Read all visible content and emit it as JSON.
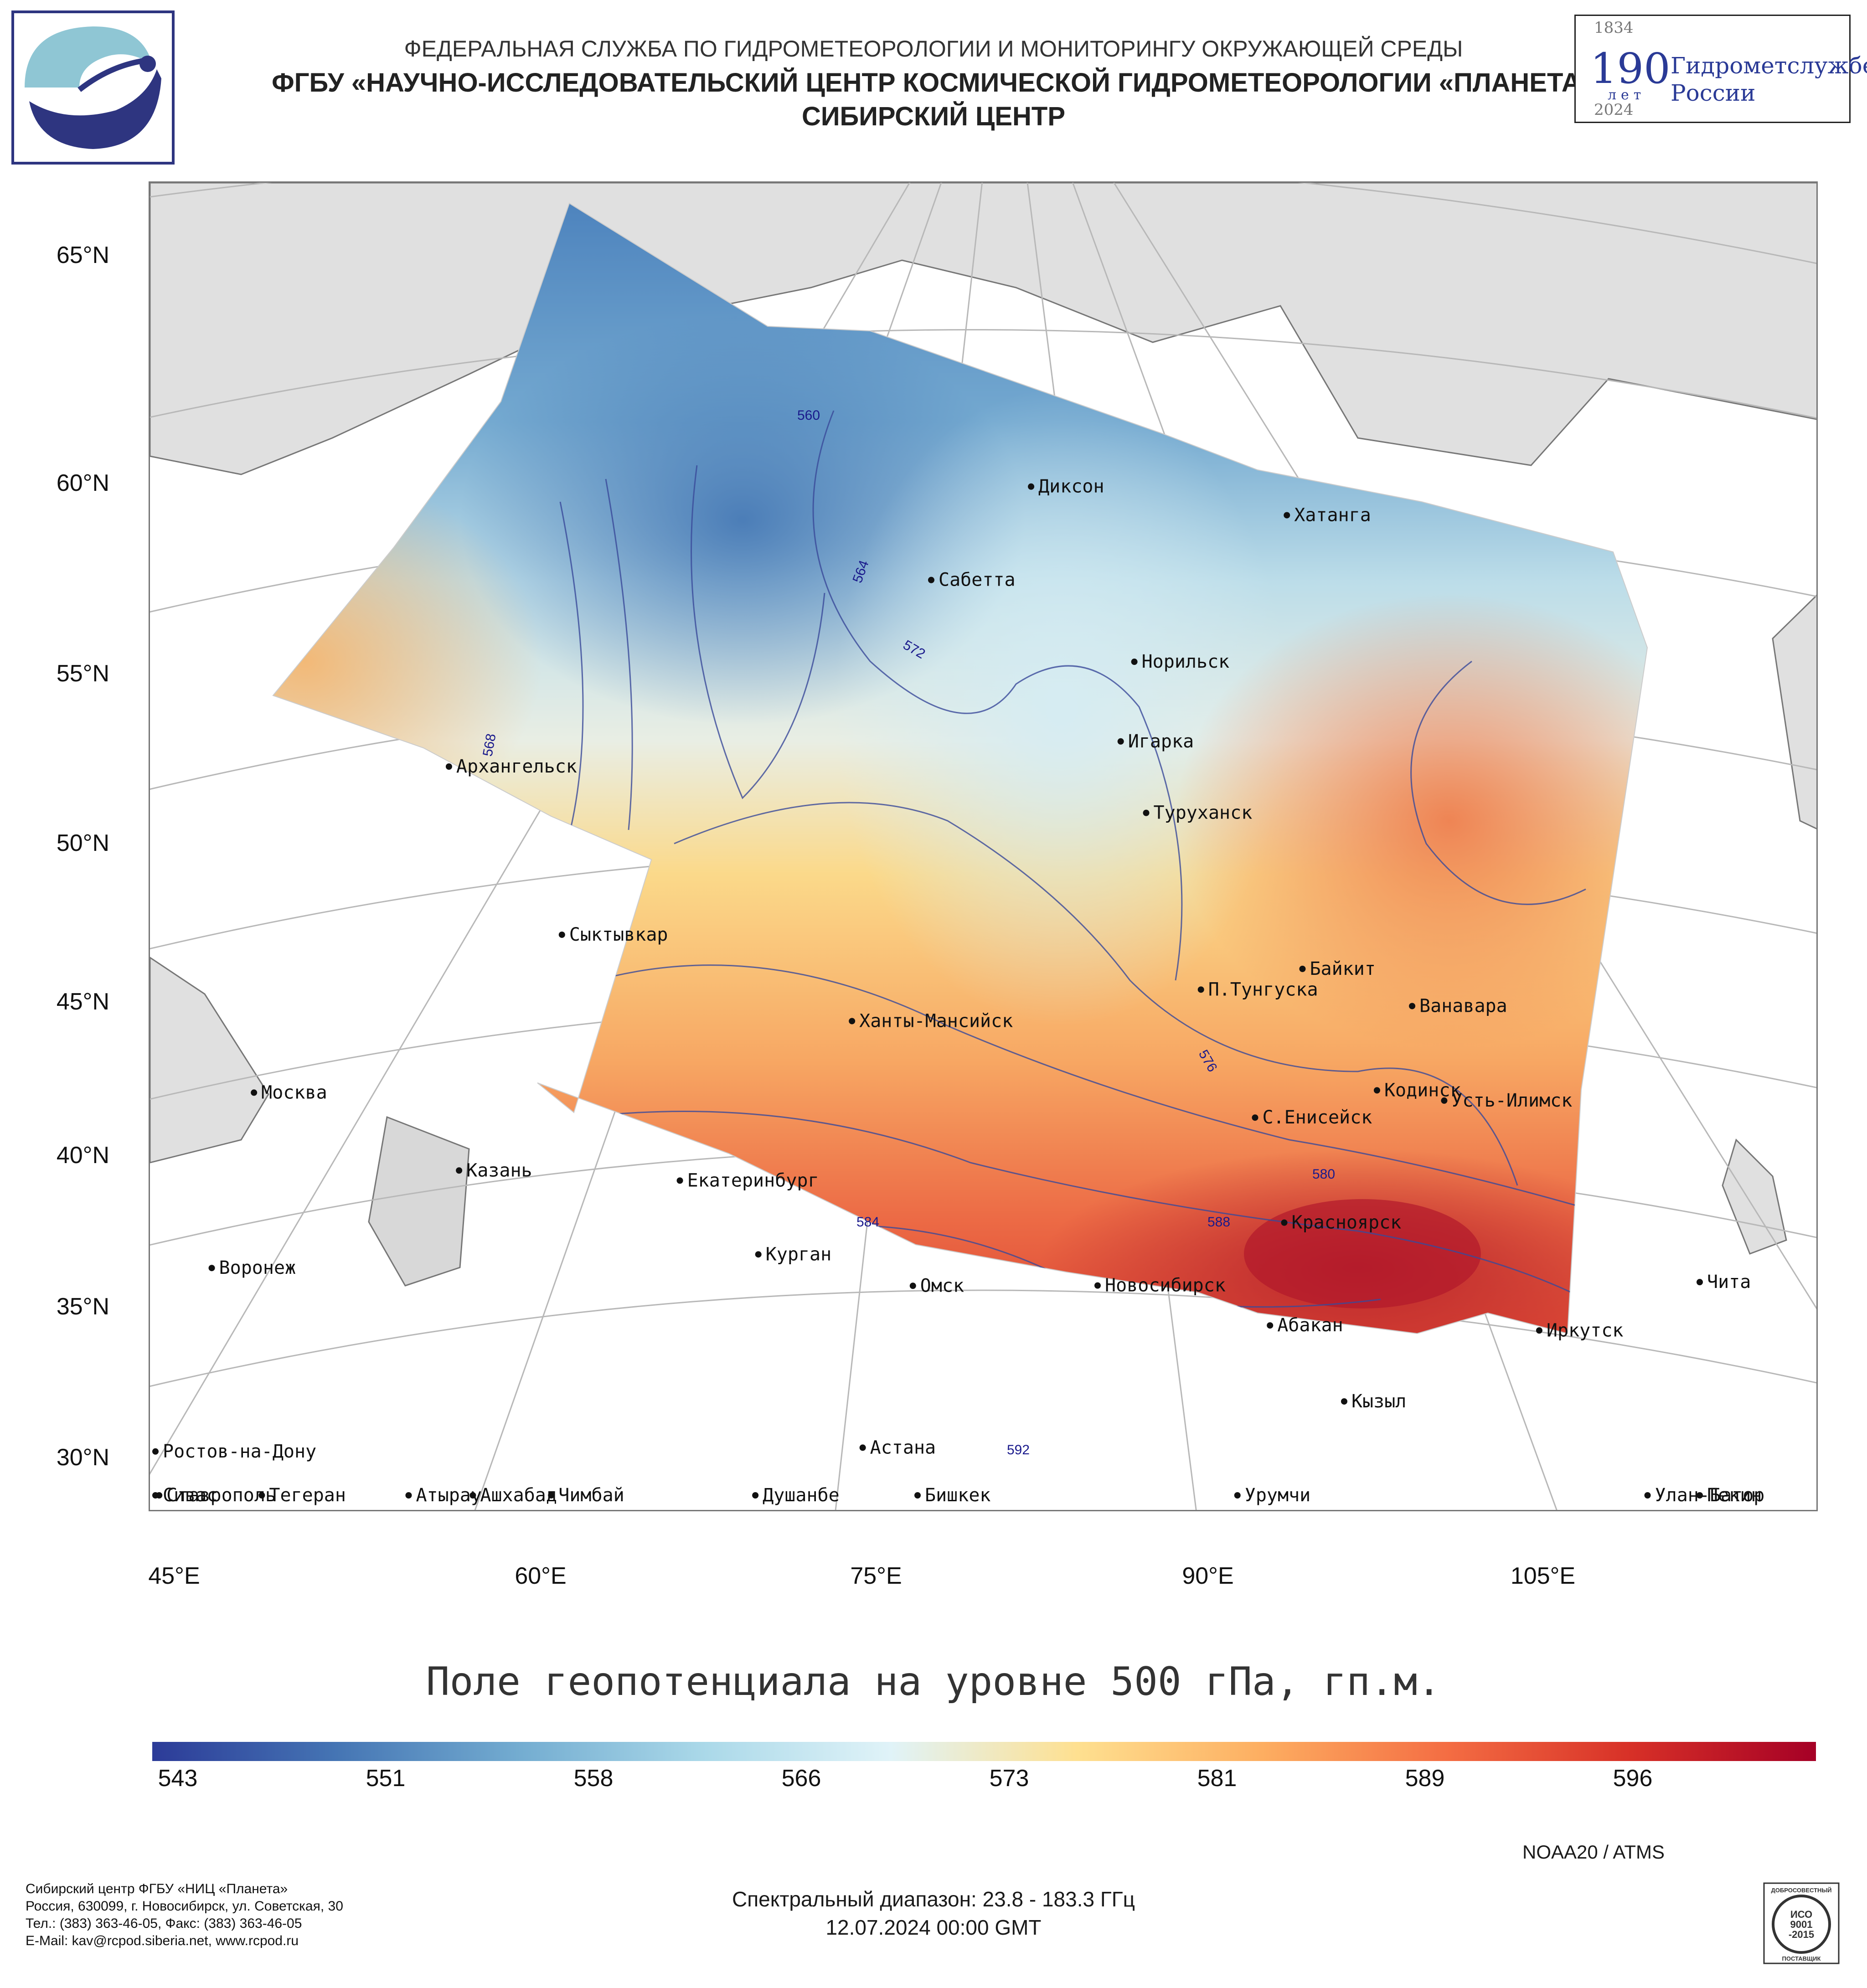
{
  "header": {
    "line1": "ФЕДЕРАЛЬНАЯ СЛУЖБА ПО ГИДРОМЕТЕОРОЛОГИИ И МОНИТОРИНГУ ОКРУЖАЮЩЕЙ СРЕДЫ",
    "line2": "ФГБУ «НАУЧНО-ИССЛЕДОВАТЕЛЬСКИЙ ЦЕНТР КОСМИЧЕСКОЙ ГИДРОМЕТЕОРОЛОГИИ «ПЛАНЕТА»",
    "line3": "СИБИРСКИЙ ЦЕНТР"
  },
  "anniversary": {
    "year_start": "1834",
    "number": "190",
    "unit": "лет",
    "year_end": "2024",
    "name_line1": "Гидрометслужбе",
    "name_line2": "России"
  },
  "map": {
    "title": "Поле геопотенциала на уровне 500 гПа, гп.м.",
    "lat_labels": [
      "65°N",
      "60°N",
      "55°N",
      "50°N",
      "45°N",
      "40°N",
      "35°N",
      "30°N"
    ],
    "lon_labels": [
      "45°E",
      "60°E",
      "75°E",
      "90°E",
      "105°E"
    ],
    "cities": [
      {
        "name": "Диксон",
        "lat": 73.5,
        "lon": 80.6
      },
      {
        "name": "Хатанга",
        "lat": 72.0,
        "lon": 102.5
      },
      {
        "name": "Сабетта",
        "lat": 71.3,
        "lon": 72.1
      },
      {
        "name": "Норильск",
        "lat": 69.3,
        "lon": 88.2
      },
      {
        "name": "Архангельск",
        "lat": 64.5,
        "lon": 40.5
      },
      {
        "name": "Игарка",
        "lat": 67.5,
        "lon": 86.6
      },
      {
        "name": "Туруханск",
        "lat": 65.8,
        "lon": 87.9
      },
      {
        "name": "Сыктывкар",
        "lat": 61.7,
        "lon": 50.8
      },
      {
        "name": "Байкит",
        "lat": 61.7,
        "lon": 96.4
      },
      {
        "name": "П.Тунгуска",
        "lat": 61.6,
        "lon": 90.1
      },
      {
        "name": "Ванавара",
        "lat": 60.3,
        "lon": 102.3
      },
      {
        "name": "Москва",
        "lat": 55.8,
        "lon": 37.6
      },
      {
        "name": "Ханты-Мансийск",
        "lat": 61.0,
        "lon": 69.0
      },
      {
        "name": "С.Енисейск",
        "lat": 58.5,
        "lon": 92.2
      },
      {
        "name": "Кодинск",
        "lat": 58.6,
        "lon": 99.2
      },
      {
        "name": "Усть-Илимск",
        "lat": 58.0,
        "lon": 102.7
      },
      {
        "name": "Казань",
        "lat": 55.8,
        "lon": 49.1
      },
      {
        "name": "Екатеринбург",
        "lat": 56.8,
        "lon": 60.6
      },
      {
        "name": "Воронеж",
        "lat": 51.7,
        "lon": 39.2
      },
      {
        "name": "Красноярск",
        "lat": 56.0,
        "lon": 92.9
      },
      {
        "name": "Курган",
        "lat": 55.4,
        "lon": 65.3
      },
      {
        "name": "Чита",
        "lat": 52.0,
        "lon": 113.5
      },
      {
        "name": "Омск",
        "lat": 55.0,
        "lon": 73.4
      },
      {
        "name": "Новосибирск",
        "lat": 55.0,
        "lon": 82.9
      },
      {
        "name": "Ростов-на-Дону",
        "lat": 47.2,
        "lon": 39.7
      },
      {
        "name": "Абакан",
        "lat": 53.7,
        "lon": 91.4
      },
      {
        "name": "Иркутск",
        "lat": 52.3,
        "lon": 104.3
      },
      {
        "name": "Кызыл",
        "lat": 51.7,
        "lon": 94.4
      },
      {
        "name": "Ставрополь",
        "lat": 45.0,
        "lon": 42.0
      },
      {
        "name": "Астана",
        "lat": 51.2,
        "lon": 71.4
      },
      {
        "name": "Улан-Батор",
        "lat": 47.9,
        "lon": 106.9
      },
      {
        "name": "Атырау",
        "lat": 47.1,
        "lon": 51.9
      },
      {
        "name": "Сивас",
        "lat": 39.7,
        "lon": 37.0
      },
      {
        "name": "Пекин",
        "lat": 39.9,
        "lon": 116.4
      },
      {
        "name": "Чимбай",
        "lat": 42.9,
        "lon": 59.8
      },
      {
        "name": "Урумчи",
        "lat": 43.8,
        "lon": 87.6
      },
      {
        "name": "Бишкек",
        "lat": 42.9,
        "lon": 74.6
      },
      {
        "name": "Ашхабад",
        "lat": 37.9,
        "lon": 58.4
      },
      {
        "name": "Тегеран",
        "lat": 35.7,
        "lon": 51.4
      },
      {
        "name": "Душанбе",
        "lat": 38.6,
        "lon": 68.8
      }
    ],
    "contour_labels": [
      "560",
      "564",
      "568",
      "572",
      "576",
      "580",
      "584",
      "588",
      "592"
    ]
  },
  "colorbar": {
    "labels": [
      "543",
      "551",
      "558",
      "566",
      "573",
      "581",
      "589",
      "596"
    ],
    "colors": [
      "#2c3b98",
      "#4575b4",
      "#74add1",
      "#abd9e9",
      "#e0f3f8",
      "#fee090",
      "#fdae61",
      "#f46d43",
      "#d73027",
      "#a50026"
    ]
  },
  "footer": {
    "satellite": "NOAA20 / ATMS",
    "spectral": "Спектральный диапазон: 23.8 - 183.3 ГГц",
    "date": "12.07.2024 00:00 GMT",
    "address": [
      "Сибирский центр ФГБУ «НИЦ «Планета»",
      "Россия, 630099, г. Новосибирск, ул. Советская, 30",
      "Тел.: (383) 363-46-05, Факс: (383) 363-46-05",
      "E-Mail: kav@rcpod.siberia.net, www.rcpod.ru"
    ],
    "iso_top": "ДОБРОСОВЕСТНЫЙ",
    "iso_mid1": "ИСО",
    "iso_mid2": "9001",
    "iso_mid3": "-2015",
    "iso_bottom": "ПОСТАВЩИК"
  }
}
